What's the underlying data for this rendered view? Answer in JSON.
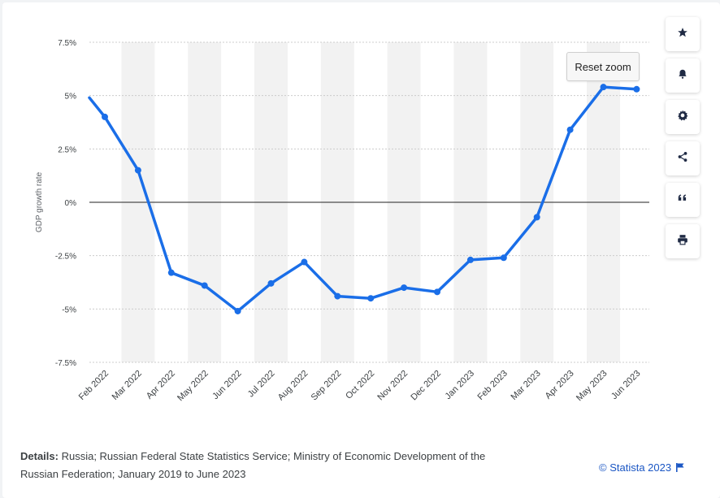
{
  "chart_data": {
    "type": "line",
    "ylabel": "GDP growth rate",
    "categories": [
      "Feb 2022",
      "Mar 2022",
      "Apr 2022",
      "May 2022",
      "Jun 2022",
      "Jul 2022",
      "Aug 2022",
      "Sep 2022",
      "Oct 2022",
      "Nov 2022",
      "Dec 2022",
      "Jan 2023",
      "Feb 2023",
      "Mar 2023",
      "Apr 2023",
      "May 2023",
      "Jun 2023"
    ],
    "series": [
      {
        "values": [
          4.0,
          1.5,
          -3.3,
          -3.9,
          -5.1,
          -3.8,
          -2.8,
          -4.4,
          -4.5,
          -4.0,
          -4.2,
          -2.7,
          -2.6,
          -0.7,
          3.4,
          5.4,
          5.3
        ],
        "color": "#1a6ee8"
      }
    ],
    "line_start_value": 4.9,
    "ylim": [
      -7.5,
      7.5
    ],
    "yticks": [
      {
        "value": 7.5,
        "label": "7.5%"
      },
      {
        "value": 5,
        "label": "5%"
      },
      {
        "value": 2.5,
        "label": "2.5%"
      },
      {
        "value": 0,
        "label": "0%"
      },
      {
        "value": -2.5,
        "label": "-2.5%"
      },
      {
        "value": -5,
        "label": "-5%"
      },
      {
        "value": -7.5,
        "label": "-7.5%"
      }
    ],
    "grid": true
  },
  "reset_zoom_label": "Reset zoom",
  "toolbar": [
    {
      "icon": "star-icon",
      "name": "favorite-button"
    },
    {
      "icon": "bell-icon",
      "name": "notification-button"
    },
    {
      "icon": "gear-icon",
      "name": "settings-button"
    },
    {
      "icon": "share-icon",
      "name": "share-button"
    },
    {
      "icon": "quote-icon",
      "name": "cite-button"
    },
    {
      "icon": "print-icon",
      "name": "print-button"
    }
  ],
  "details": {
    "label": "Details:",
    "text": " Russia; Russian Federal State Statistics Service; Ministry of Economic Development of the Russian Federation; January 2019 to June 2023"
  },
  "credit": "© Statista 2023",
  "colors": {
    "line": "#1a6ee8",
    "band": "#f2f2f2",
    "grid": "#cccccc",
    "accent": "#1a56c4"
  }
}
